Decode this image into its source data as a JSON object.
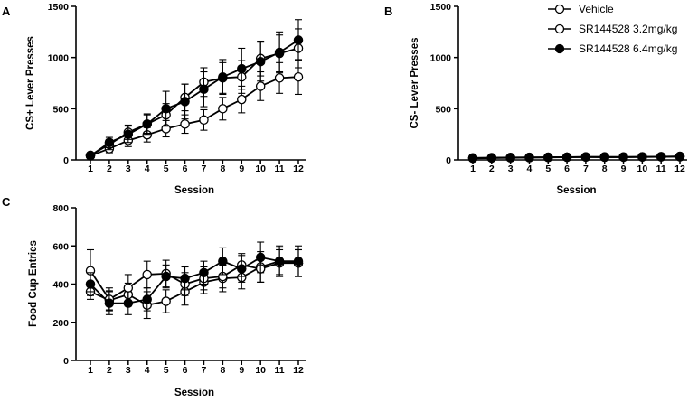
{
  "legend": [
    {
      "label": "Vehicle",
      "marker": "open"
    },
    {
      "label": "SR144528 3.2mg/kg",
      "marker": "open"
    },
    {
      "label": "SR144528 6.4mg/kg",
      "marker": "filled"
    }
  ],
  "colors": {
    "line": "#000000",
    "open_fill": "#ffffff",
    "filled_fill": "#000000"
  },
  "chart_data": [
    {
      "panel": "A",
      "type": "line",
      "title": "",
      "xlabel": "Session",
      "ylabel": "CS+  Lever Presses",
      "x": [
        1,
        2,
        3,
        4,
        5,
        6,
        7,
        8,
        9,
        10,
        11,
        12
      ],
      "ylim": [
        0,
        1500
      ],
      "yticks": [
        0,
        500,
        1000,
        1500
      ],
      "grid": false,
      "series": [
        {
          "name": "Vehicle",
          "marker": "open",
          "values": [
            40,
            110,
            190,
            245,
            305,
            350,
            390,
            500,
            590,
            720,
            800,
            810
          ],
          "errors": [
            15,
            40,
            60,
            70,
            80,
            90,
            100,
            110,
            130,
            140,
            150,
            170
          ]
        },
        {
          "name": "SR144528 3.2mg/kg",
          "marker": "open",
          "values": [
            45,
            150,
            270,
            350,
            440,
            610,
            760,
            800,
            810,
            990,
            1040,
            1090
          ],
          "errors": [
            15,
            50,
            70,
            90,
            110,
            130,
            140,
            150,
            160,
            170,
            180,
            190
          ]
        },
        {
          "name": "SR144528 6.4mg/kg",
          "marker": "filled",
          "values": [
            40,
            170,
            250,
            350,
            500,
            570,
            690,
            810,
            890,
            960,
            1050,
            1170
          ],
          "errors": [
            15,
            50,
            80,
            100,
            170,
            170,
            170,
            170,
            200,
            190,
            200,
            200
          ]
        }
      ]
    },
    {
      "panel": "B",
      "type": "line",
      "title": "",
      "xlabel": "Session",
      "ylabel": "CS-  Lever Presses",
      "x": [
        1,
        2,
        3,
        4,
        5,
        6,
        7,
        8,
        9,
        10,
        11,
        12
      ],
      "ylim": [
        0,
        1500
      ],
      "yticks": [
        0,
        500,
        1000,
        1500
      ],
      "grid": false,
      "series": [
        {
          "name": "Vehicle",
          "marker": "open",
          "values": [
            20,
            22,
            24,
            25,
            26,
            27,
            28,
            28,
            29,
            30,
            30,
            32
          ],
          "errors": [
            5,
            6,
            6,
            7,
            7,
            7,
            8,
            8,
            8,
            8,
            9,
            9
          ]
        },
        {
          "name": "SR144528 3.2mg/kg",
          "marker": "open",
          "values": [
            18,
            20,
            22,
            24,
            25,
            27,
            30,
            30,
            28,
            30,
            32,
            35
          ],
          "errors": [
            5,
            6,
            6,
            7,
            7,
            7,
            8,
            8,
            8,
            8,
            9,
            9
          ]
        },
        {
          "name": "SR144528 6.4mg/kg",
          "marker": "filled",
          "values": [
            15,
            18,
            20,
            22,
            24,
            26,
            28,
            26,
            27,
            28,
            30,
            32
          ],
          "errors": [
            5,
            6,
            6,
            7,
            7,
            7,
            8,
            8,
            8,
            8,
            9,
            9
          ]
        }
      ]
    },
    {
      "panel": "C",
      "type": "line",
      "title": "",
      "xlabel": "Session",
      "ylabel": "Food Cup Entries",
      "x": [
        1,
        2,
        3,
        4,
        5,
        6,
        7,
        8,
        9,
        10,
        11,
        12
      ],
      "ylim": [
        0,
        800
      ],
      "yticks": [
        0,
        200,
        400,
        600,
        800
      ],
      "grid": false,
      "series": [
        {
          "name": "Vehicle",
          "marker": "open",
          "values": [
            360,
            315,
            345,
            290,
            310,
            360,
            410,
            430,
            435,
            490,
            520,
            510
          ],
          "errors": [
            40,
            50,
            60,
            70,
            60,
            70,
            60,
            70,
            60,
            80,
            70,
            70
          ]
        },
        {
          "name": "SR144528 3.2mg/kg",
          "marker": "open",
          "values": [
            470,
            320,
            380,
            450,
            455,
            400,
            430,
            440,
            500,
            480,
            510,
            510
          ],
          "errors": [
            110,
            60,
            70,
            70,
            70,
            60,
            60,
            60,
            60,
            70,
            70,
            70
          ]
        },
        {
          "name": "SR144528 6.4mg/kg",
          "marker": "filled",
          "values": [
            400,
            300,
            300,
            320,
            440,
            430,
            460,
            520,
            480,
            540,
            520,
            520
          ],
          "errors": [
            60,
            60,
            60,
            60,
            60,
            60,
            60,
            70,
            70,
            80,
            80,
            80
          ]
        }
      ]
    }
  ]
}
